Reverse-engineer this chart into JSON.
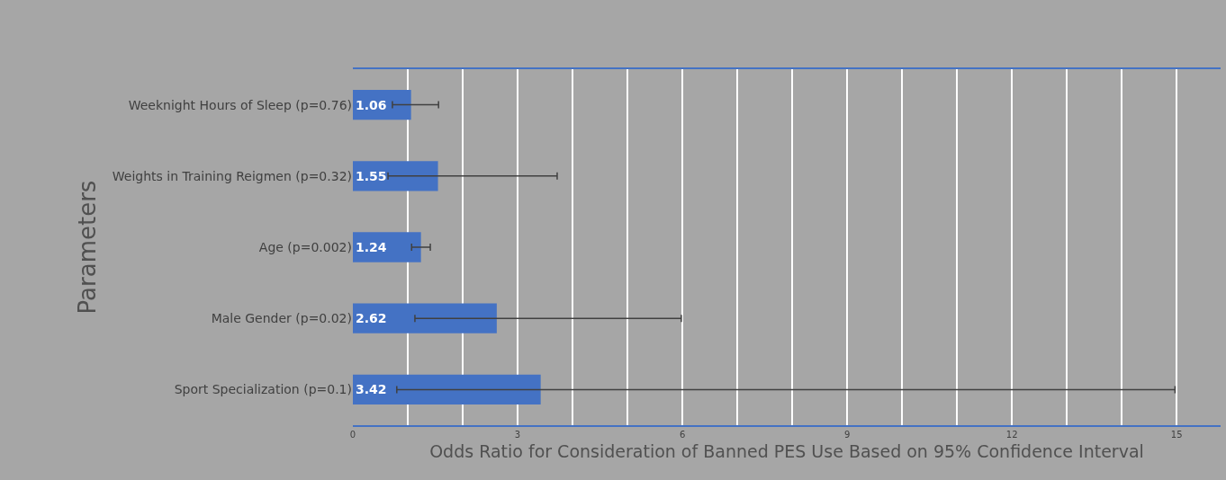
{
  "chart_data": {
    "type": "bar",
    "orientation": "horizontal",
    "categories": [
      "Weeknight Hours of Sleep (p=0.76)",
      "Weights in Training Reigmen (p=0.32)",
      "Age (p=0.002)",
      "Male Gender (p=0.02)",
      "Sport Specialization (p=0.1)"
    ],
    "values": [
      1.06,
      1.55,
      1.24,
      2.62,
      3.42
    ],
    "errors": [
      [
        0.72,
        1.56
      ],
      [
        0.64,
        3.72
      ],
      [
        1.07,
        1.41
      ],
      [
        1.13,
        5.98
      ],
      [
        0.8,
        14.97
      ]
    ],
    "color": "#4472c4",
    "data_labels": true,
    "xlabel": "Odds Ratio for Consideration of Banned PES Use Based on 95% Confidence Interval",
    "ylabel": "Parameters",
    "xlim": [
      0,
      15.8
    ],
    "xticks": [
      0,
      {
        "value": 1,
        "label": null
      },
      {
        "value": 2,
        "label": null
      },
      3,
      {
        "value": 4,
        "label": null
      },
      {
        "value": 5,
        "label": null
      },
      6,
      {
        "value": 7,
        "label": null
      },
      {
        "value": 8,
        "label": null
      },
      9,
      {
        "value": 10,
        "label": null
      },
      {
        "value": 11,
        "label": null
      },
      12,
      {
        "value": 13,
        "label": null
      },
      {
        "value": 14,
        "label": null
      },
      15
    ],
    "grid": "x"
  }
}
